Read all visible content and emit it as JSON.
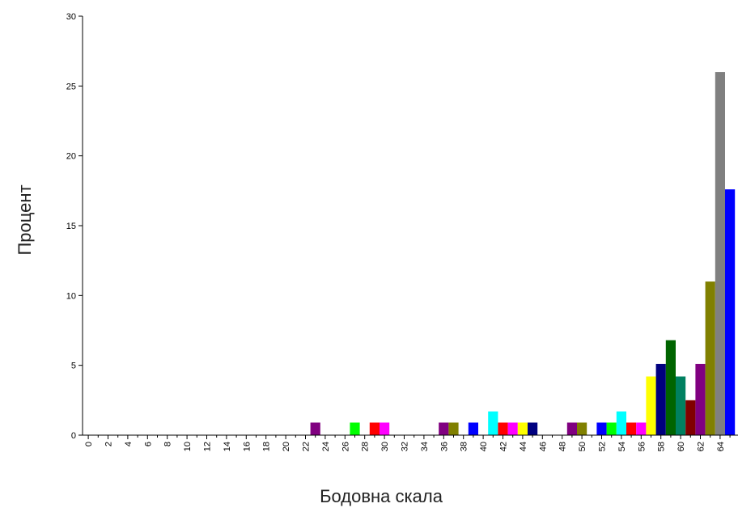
{
  "chart_data": {
    "type": "bar",
    "title": "",
    "xlabel": "Бодовна скала",
    "ylabel": "Процент",
    "ylim": [
      0,
      30
    ],
    "yticks": [
      0,
      5,
      10,
      15,
      20,
      25,
      30
    ],
    "xtick_labels": [
      "0",
      "2",
      "4",
      "6",
      "8",
      "10",
      "12",
      "14",
      "16",
      "18",
      "20",
      "22",
      "24",
      "26",
      "28",
      "30",
      "32",
      "34",
      "36",
      "38",
      "40",
      "42",
      "44",
      "46",
      "48",
      "50",
      "52",
      "54",
      "56",
      "58",
      "60",
      "62",
      "64"
    ],
    "grid": false,
    "legend": "none",
    "bars": [
      {
        "x": 23,
        "value": 0.9,
        "color": "#800080"
      },
      {
        "x": 27,
        "value": 0.9,
        "color": "#00ff00"
      },
      {
        "x": 29,
        "value": 0.9,
        "color": "#ff0000"
      },
      {
        "x": 30,
        "value": 0.9,
        "color": "#ff00ff"
      },
      {
        "x": 36,
        "value": 0.9,
        "color": "#800080"
      },
      {
        "x": 37,
        "value": 0.9,
        "color": "#808000"
      },
      {
        "x": 39,
        "value": 0.9,
        "color": "#0000ff"
      },
      {
        "x": 41,
        "value": 1.7,
        "color": "#00ffff"
      },
      {
        "x": 42,
        "value": 0.9,
        "color": "#ff0000"
      },
      {
        "x": 43,
        "value": 0.9,
        "color": "#ff00ff"
      },
      {
        "x": 44,
        "value": 0.9,
        "color": "#ffff00"
      },
      {
        "x": 45,
        "value": 0.9,
        "color": "#000080"
      },
      {
        "x": 49,
        "value": 0.9,
        "color": "#800080"
      },
      {
        "x": 50,
        "value": 0.9,
        "color": "#808000"
      },
      {
        "x": 52,
        "value": 0.9,
        "color": "#0000ff"
      },
      {
        "x": 53,
        "value": 0.9,
        "color": "#00ff00"
      },
      {
        "x": 54,
        "value": 1.7,
        "color": "#00ffff"
      },
      {
        "x": 55,
        "value": 0.9,
        "color": "#ff0000"
      },
      {
        "x": 56,
        "value": 0.9,
        "color": "#ff00ff"
      },
      {
        "x": 57,
        "value": 4.2,
        "color": "#ffff00"
      },
      {
        "x": 58,
        "value": 5.1,
        "color": "#000080"
      },
      {
        "x": 59,
        "value": 6.8,
        "color": "#006400"
      },
      {
        "x": 60,
        "value": 4.2,
        "color": "#008060"
      },
      {
        "x": 61,
        "value": 2.5,
        "color": "#800000"
      },
      {
        "x": 62,
        "value": 5.1,
        "color": "#800080"
      },
      {
        "x": 63,
        "value": 11.0,
        "color": "#808000"
      },
      {
        "x": 64,
        "value": 26.0,
        "color": "#808080"
      },
      {
        "x": 65,
        "value": 17.6,
        "color": "#0000ff"
      }
    ]
  }
}
